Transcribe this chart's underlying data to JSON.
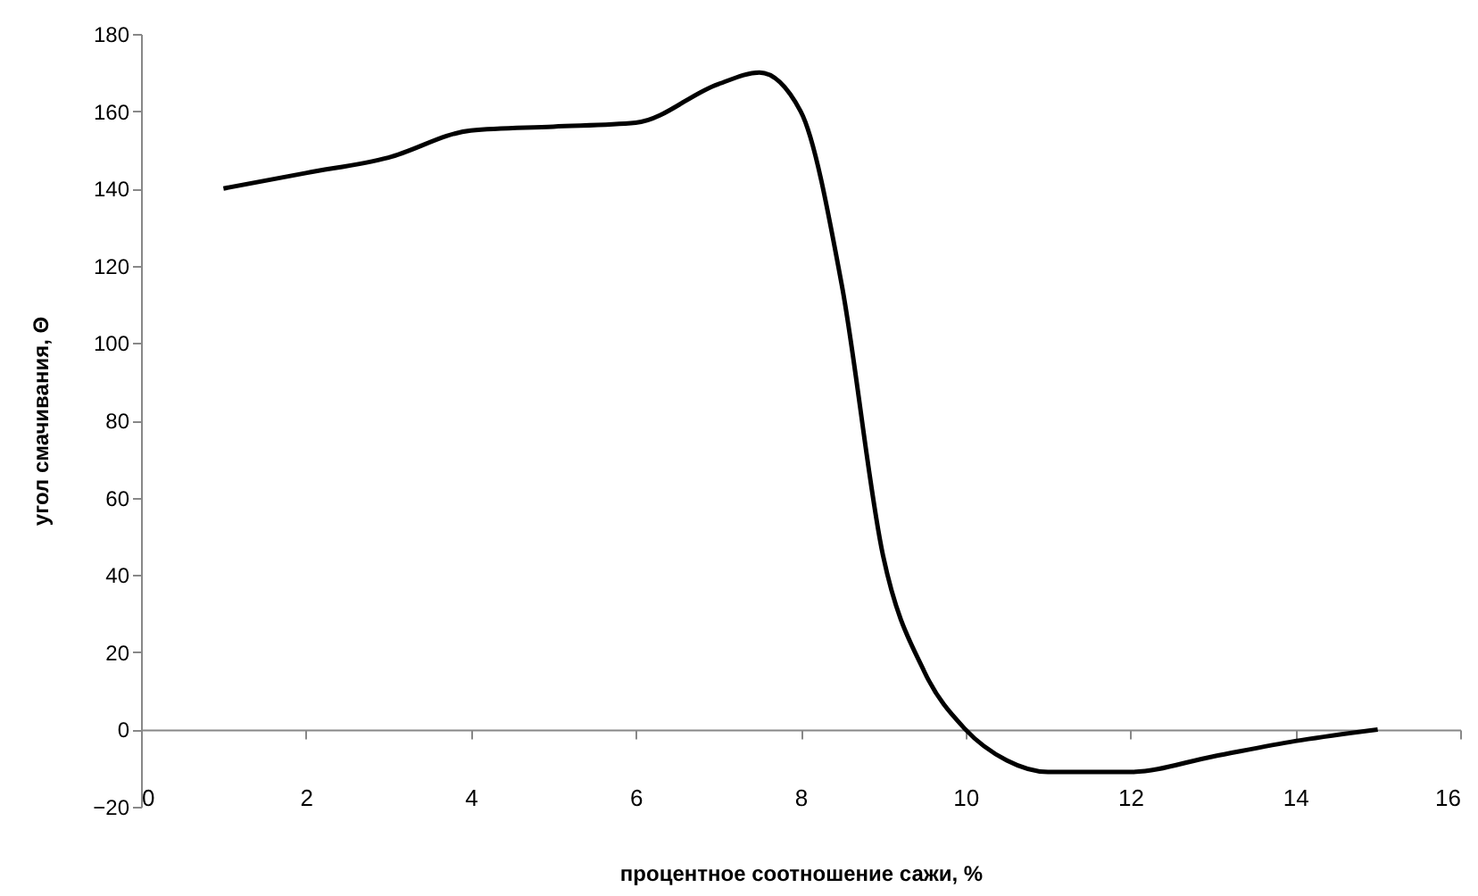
{
  "chart_data": {
    "type": "line",
    "xlabel": "процентное соотношение сажи, %",
    "ylabel": "угол смачивания, Θ",
    "x": [
      1,
      2,
      3,
      4,
      5,
      6,
      7,
      7.5,
      8,
      8.5,
      9,
      9.5,
      10,
      10.5,
      11,
      12,
      13,
      14,
      15
    ],
    "series": [
      {
        "color": "#000000",
        "values": [
          140,
          144,
          148,
          155,
          156,
          157,
          167,
          170,
          160,
          115,
          45,
          15,
          0,
          -8,
          -11,
          -11,
          -7,
          -3,
          0
        ]
      }
    ],
    "xlim": [
      0,
      16
    ],
    "xticks": [
      0,
      2,
      4,
      6,
      8,
      10,
      12,
      14,
      16
    ],
    "ylim": [
      -20,
      180
    ],
    "yticks": [
      -20,
      0,
      20,
      40,
      60,
      80,
      100,
      120,
      140,
      160,
      180
    ],
    "grid": false,
    "marker": "none",
    "line_style": "solid"
  }
}
